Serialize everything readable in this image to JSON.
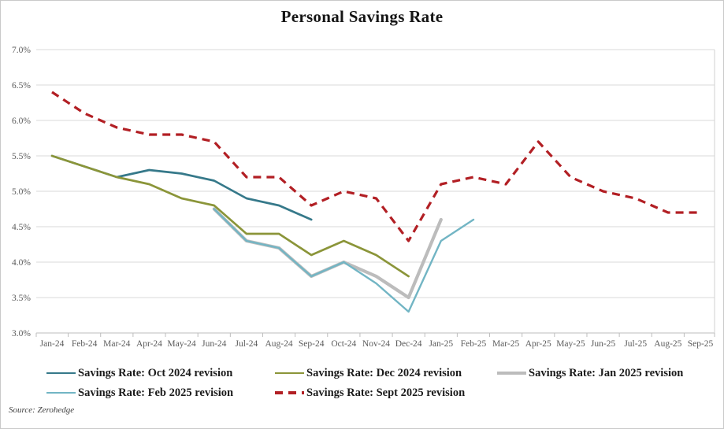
{
  "title": "Personal Savings Rate",
  "source": "Source: Zerohedge",
  "chart_data": {
    "type": "line",
    "title": "Personal Savings Rate",
    "categories": [
      "Jan-24",
      "Feb-24",
      "Mar-24",
      "Apr-24",
      "May-24",
      "Jun-24",
      "Jul-24",
      "Aug-24",
      "Sep-24",
      "Oct-24",
      "Nov-24",
      "Dec-24",
      "Jan-25",
      "Feb-25",
      "Mar-25",
      "Apr-25",
      "May-25",
      "Jun-25",
      "Jul-25",
      "Aug-25",
      "Sep-25"
    ],
    "y_axis": {
      "min": 3.0,
      "max": 7.0,
      "step": 0.5,
      "tick_labels": [
        "7.0%",
        "6.5%",
        "6.0%",
        "5.5%",
        "5.0%",
        "4.5%",
        "4.0%",
        "3.5%",
        "3.0%"
      ]
    },
    "grid": true,
    "legend_position": "bottom",
    "series": [
      {
        "name": "Savings Rate: Oct 2024 revision",
        "color": "#36798a",
        "dash": "solid",
        "width": 2.7,
        "values": [
          5.5,
          5.35,
          5.2,
          5.3,
          5.25,
          5.15,
          4.9,
          4.8,
          4.6,
          null,
          null,
          null,
          null,
          null,
          null,
          null,
          null,
          null,
          null,
          null,
          null
        ]
      },
      {
        "name": "Savings Rate: Dec 2024 revision",
        "color": "#8b9539",
        "dash": "solid",
        "width": 2.7,
        "values": [
          5.5,
          5.35,
          5.2,
          5.1,
          4.9,
          4.8,
          4.4,
          4.4,
          4.1,
          4.3,
          4.1,
          3.8,
          null,
          null,
          null,
          null,
          null,
          null,
          null,
          null,
          null
        ]
      },
      {
        "name": "Savings Rate: Jan 2025 revision",
        "color": "#bcbcbc",
        "dash": "solid",
        "width": 4.2,
        "values": [
          null,
          null,
          null,
          null,
          null,
          4.75,
          4.3,
          4.2,
          3.8,
          4.0,
          3.8,
          3.5,
          4.6,
          null,
          null,
          null,
          null,
          null,
          null,
          null,
          null
        ]
      },
      {
        "name": "Savings Rate: Feb 2025 revision",
        "color": "#72b5c4",
        "dash": "solid",
        "width": 2.4,
        "values": [
          null,
          null,
          null,
          null,
          null,
          4.75,
          4.3,
          4.2,
          3.8,
          4.0,
          3.7,
          3.3,
          4.3,
          4.6,
          null,
          null,
          null,
          null,
          null,
          null,
          null
        ]
      },
      {
        "name": "Savings Rate: Sept 2025 revision",
        "color": "#b21f24",
        "dash": "dashed",
        "width": 3.2,
        "values": [
          6.4,
          6.1,
          5.9,
          5.8,
          5.8,
          5.7,
          5.2,
          5.2,
          4.8,
          5.0,
          4.9,
          4.3,
          5.1,
          5.2,
          5.1,
          5.7,
          5.2,
          5.0,
          4.9,
          4.7,
          4.7
        ]
      }
    ]
  }
}
